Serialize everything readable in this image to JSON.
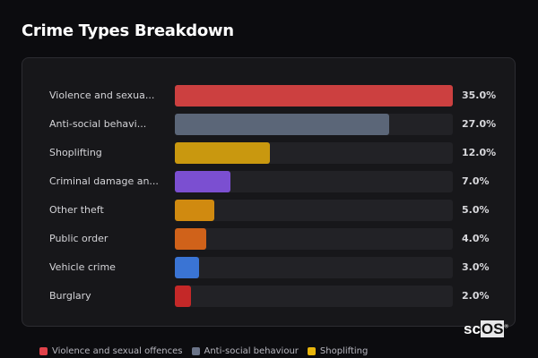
{
  "title": "Crime Types Breakdown",
  "chart_data": {
    "type": "bar",
    "orientation": "horizontal",
    "title": "Crime Types Breakdown",
    "categories": [
      "Violence and sexua...",
      "Anti-social behavi...",
      "Shoplifting",
      "Criminal damage an...",
      "Other theft",
      "Public order",
      "Vehicle crime",
      "Burglary"
    ],
    "values": [
      35.0,
      27.0,
      12.0,
      7.0,
      5.0,
      4.0,
      3.0,
      2.0
    ],
    "value_labels": [
      "35.0%",
      "27.0%",
      "12.0%",
      "7.0%",
      "5.0%",
      "4.0%",
      "3.0%",
      "2.0%"
    ],
    "colors": [
      "#cc4040",
      "#5b6678",
      "#c9980f",
      "#7b4fd1",
      "#d08a10",
      "#d0621a",
      "#3a74d4",
      "#c42828"
    ],
    "xlim": [
      0,
      35
    ],
    "legend": {
      "placement": "bottom",
      "entries": [
        {
          "label": "Violence and sexual offences",
          "color": "#e0424a"
        },
        {
          "label": "Anti-social behaviour",
          "color": "#6b7488"
        },
        {
          "label": "Shoplifting",
          "color": "#e8b50c"
        }
      ]
    }
  },
  "logo": {
    "text_a": "sc",
    "text_b": "OS",
    "mark": "®"
  }
}
